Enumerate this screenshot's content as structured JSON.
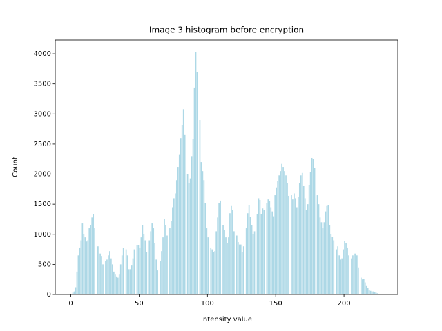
{
  "chart_data": {
    "type": "histogram",
    "title": "Image 3 histogram before encryption",
    "xlabel": "Intensity value",
    "ylabel": "Count",
    "color": "#add8e6",
    "bins": [
      0,
      1,
      2,
      3,
      4,
      5,
      6,
      7,
      8,
      9,
      10,
      11,
      12,
      13,
      14,
      15,
      16,
      17,
      18,
      19,
      20,
      21,
      22,
      23,
      24,
      25,
      26,
      27,
      28,
      29,
      30,
      31,
      32,
      33,
      34,
      35,
      36,
      37,
      38,
      39,
      40,
      41,
      42,
      43,
      44,
      45,
      46,
      47,
      48,
      49,
      50,
      51,
      52,
      53,
      54,
      55,
      56,
      57,
      58,
      59,
      60,
      61,
      62,
      63,
      64,
      65,
      66,
      67,
      68,
      69,
      70,
      71,
      72,
      73,
      74,
      75,
      76,
      77,
      78,
      79,
      80,
      81,
      82,
      83,
      84,
      85,
      86,
      87,
      88,
      89,
      90,
      91,
      92,
      93,
      94,
      95,
      96,
      97,
      98,
      99,
      100,
      101,
      102,
      103,
      104,
      105,
      106,
      107,
      108,
      109,
      110,
      111,
      112,
      113,
      114,
      115,
      116,
      117,
      118,
      119,
      120,
      121,
      122,
      123,
      124,
      125,
      126,
      127,
      128,
      129,
      130,
      131,
      132,
      133,
      134,
      135,
      136,
      137,
      138,
      139,
      140,
      141,
      142,
      143,
      144,
      145,
      146,
      147,
      148,
      149,
      150,
      151,
      152,
      153,
      154,
      155,
      156,
      157,
      158,
      159,
      160,
      161,
      162,
      163,
      164,
      165,
      166,
      167,
      168,
      169,
      170,
      171,
      172,
      173,
      174,
      175,
      176,
      177,
      178,
      179,
      180,
      181,
      182,
      183,
      184,
      185,
      186,
      187,
      188,
      189,
      190,
      191,
      192,
      193,
      194,
      195,
      196,
      197,
      198,
      199,
      200,
      201,
      202,
      203,
      204,
      205,
      206,
      207,
      208,
      209,
      210,
      211,
      212,
      213,
      214,
      215,
      216,
      217,
      218,
      219,
      220,
      221,
      222,
      223,
      224,
      225,
      226,
      227,
      228
    ],
    "counts": [
      0,
      30,
      50,
      120,
      380,
      650,
      780,
      900,
      1180,
      1000,
      950,
      880,
      900,
      1100,
      1150,
      1280,
      1340,
      1100,
      0,
      800,
      800,
      680,
      640,
      500,
      0,
      560,
      580,
      650,
      720,
      600,
      500,
      380,
      330,
      300,
      280,
      330,
      500,
      650,
      770,
      0,
      750,
      650,
      420,
      420,
      480,
      600,
      750,
      0,
      820,
      820,
      780,
      950,
      1150,
      1000,
      900,
      700,
      0,
      900,
      1050,
      1180,
      1100,
      850,
      580,
      400,
      0,
      550,
      720,
      950,
      1250,
      1150,
      980,
      0,
      1100,
      1220,
      1450,
      1600,
      1680,
      1900,
      2120,
      2320,
      2600,
      2820,
      3080,
      2650,
      0,
      2000,
      1850,
      1930,
      2300,
      2580,
      3440,
      4030,
      3700,
      0,
      2900,
      2200,
      2050,
      1900,
      1520,
      1100,
      950,
      0,
      780,
      750,
      700,
      720,
      1050,
      1280,
      1520,
      1560,
      0,
      1150,
      1070,
      950,
      850,
      950,
      1350,
      1470,
      1400,
      1050,
      0,
      980,
      870,
      830,
      830,
      700,
      800,
      0,
      1100,
      1350,
      1480,
      1290,
      1150,
      1000,
      1050,
      0,
      1330,
      1600,
      1570,
      1340,
      1430,
      1410,
      0,
      1520,
      1580,
      1550,
      1450,
      1380,
      1300,
      1650,
      1780,
      1880,
      1980,
      2050,
      2170,
      2120,
      2050,
      1980,
      1850,
      1640,
      0,
      1650,
      1580,
      1680,
      1600,
      1450,
      1620,
      1850,
      1980,
      2020,
      1800,
      1600,
      1400,
      1500,
      1820,
      2040,
      2270,
      2250,
      2100,
      0,
      1650,
      1500,
      1280,
      1200,
      1100,
      1200,
      1380,
      1470,
      1490,
      1150,
      1000,
      960,
      900,
      0,
      750,
      800,
      650,
      580,
      600,
      750,
      890,
      850,
      780,
      650,
      0,
      600,
      650,
      680,
      680,
      650,
      450,
      0,
      280,
      250,
      260,
      200,
      140,
      110,
      80,
      60,
      50,
      50,
      40,
      30,
      20,
      10,
      8,
      5
    ],
    "xlim": [
      -11.4,
      239.4
    ],
    "xticks": [
      0,
      50,
      100,
      150,
      200
    ],
    "ylim": [
      0,
      4230
    ],
    "yticks": [
      0,
      500,
      1000,
      1500,
      2000,
      2500,
      3000,
      3500,
      4000
    ]
  }
}
